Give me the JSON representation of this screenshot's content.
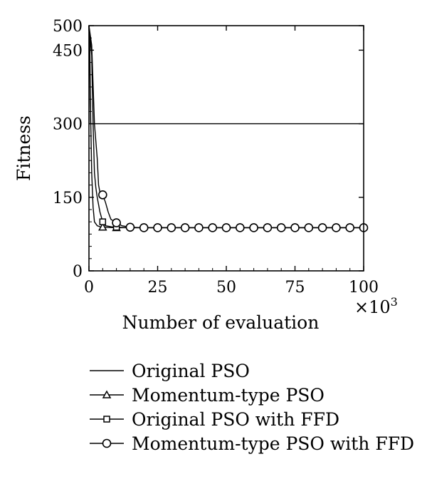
{
  "chart_data": {
    "type": "line",
    "xlabel": "Number of evaluation",
    "ylabel": "Fitness",
    "x_multiplier_base": "×10",
    "x_multiplier_exp": "3",
    "xlim": [
      0,
      100
    ],
    "ylim": [
      0,
      500
    ],
    "x_ticks": [
      "0",
      "25",
      "50",
      "75",
      "100"
    ],
    "y_ticks": [
      "0",
      "150",
      "300",
      "450",
      "500"
    ],
    "y_tick_values": [
      0,
      150,
      300,
      450,
      500
    ],
    "grid": false,
    "legend_position": "bottom",
    "series": [
      {
        "name": "Original PSO",
        "marker": "none",
        "x": [
          0,
          0.3,
          0.6,
          1,
          100
        ],
        "y": [
          500,
          470,
          300,
          300,
          300
        ]
      },
      {
        "name": "Momentum-type PSO",
        "marker": "triangle",
        "x": [
          0,
          0.5,
          1,
          1.5,
          2,
          3,
          4,
          5,
          10,
          15,
          20,
          25,
          30,
          35,
          40,
          45,
          50,
          55,
          60,
          65,
          70,
          75,
          80,
          85,
          90,
          95,
          100
        ],
        "y": [
          500,
          350,
          200,
          130,
          100,
          92,
          90,
          89,
          88,
          88,
          88,
          88,
          88,
          88,
          88,
          88,
          88,
          88,
          88,
          88,
          88,
          88,
          88,
          88,
          88,
          88,
          88
        ],
        "marker_x": [
          5,
          10
        ]
      },
      {
        "name": "Original PSO with FFD",
        "marker": "square",
        "x": [
          0,
          1,
          1.5,
          2,
          2.5,
          3,
          4,
          5,
          6,
          8,
          10,
          15,
          20,
          25,
          30,
          35,
          40,
          45,
          50,
          55,
          60,
          65,
          70,
          75,
          80,
          85,
          90,
          95,
          100
        ],
        "y": [
          500,
          440,
          300,
          200,
          170,
          150,
          120,
          100,
          92,
          90,
          89,
          88,
          88,
          88,
          88,
          88,
          88,
          88,
          88,
          88,
          88,
          88,
          88,
          88,
          88,
          88,
          88,
          88,
          88
        ],
        "marker_x": [
          5,
          10
        ]
      },
      {
        "name": "Momentum-type PSO with FFD",
        "marker": "circle",
        "x": [
          0,
          1,
          2,
          3,
          3.5,
          4,
          5,
          6,
          7,
          8,
          10,
          12,
          15,
          20,
          25,
          30,
          35,
          40,
          45,
          50,
          55,
          60,
          65,
          70,
          75,
          80,
          85,
          90,
          95,
          100
        ],
        "y": [
          500,
          460,
          300,
          230,
          175,
          160,
          155,
          140,
          120,
          105,
          98,
          92,
          89,
          88,
          88,
          88,
          88,
          88,
          88,
          88,
          88,
          88,
          88,
          88,
          88,
          88,
          88,
          88,
          88,
          88
        ],
        "marker_x": [
          5,
          10,
          15,
          20,
          25,
          30,
          35,
          40,
          45,
          50,
          55,
          60,
          65,
          70,
          75,
          80,
          85,
          90,
          95,
          100
        ]
      }
    ]
  }
}
